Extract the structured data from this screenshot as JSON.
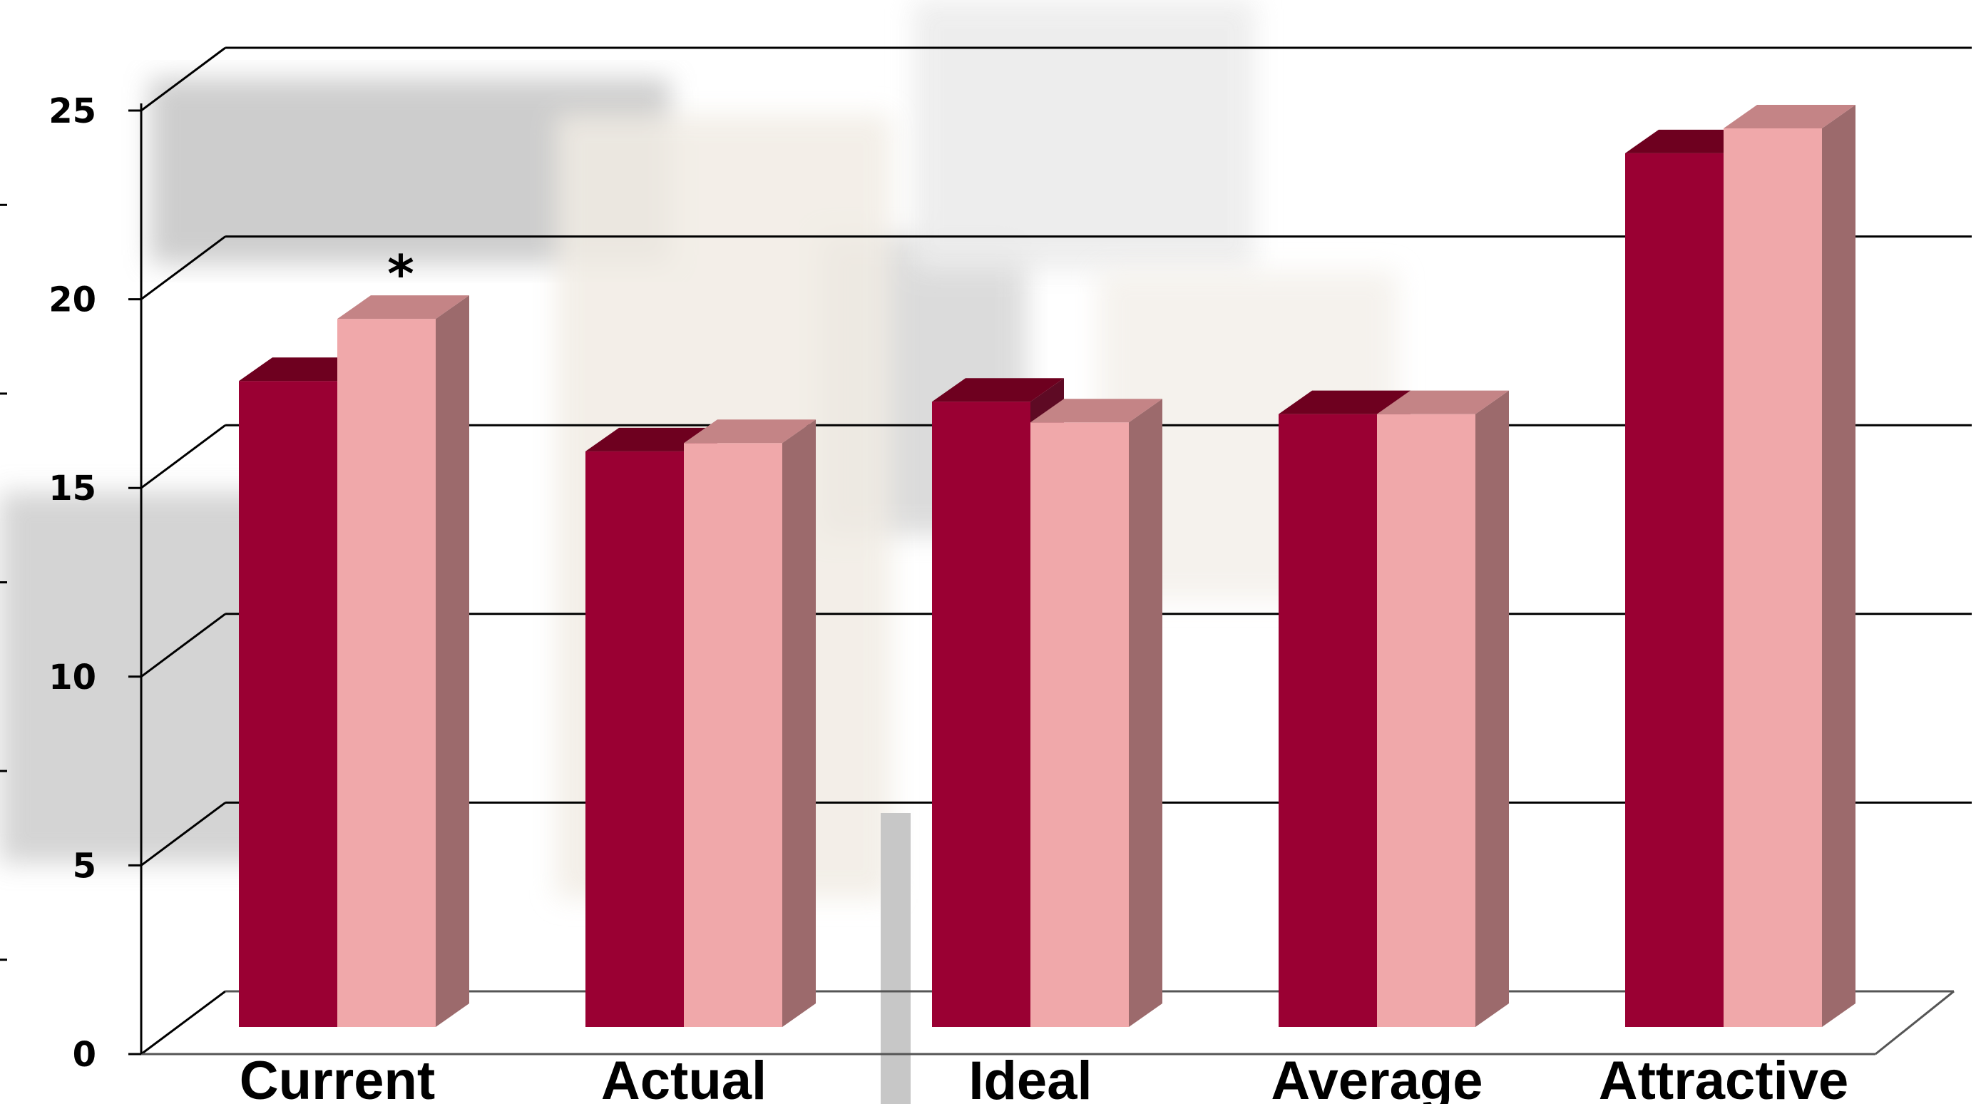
{
  "chart_data": {
    "type": "bar",
    "title": "",
    "xlabel": "",
    "ylabel": "",
    "categories": [
      "Current",
      "Actual",
      "Ideal",
      "Average",
      "Attractive"
    ],
    "series": [
      {
        "values": [
          15.6,
          13.9,
          15.1,
          14.8,
          21.1
        ],
        "color": "#9a0033"
      },
      {
        "values": [
          17.1,
          14.1,
          14.6,
          14.8,
          21.7
        ],
        "color": "#f0a8aa"
      }
    ],
    "ylim": [
      0,
      25
    ],
    "yticks": [
      0,
      5,
      10,
      15,
      20,
      25
    ],
    "grid": true,
    "three_d": true,
    "annotations": [
      {
        "text": "*",
        "category": "Current",
        "series_index": 1
      }
    ],
    "background": "photo of a person in grayscale behind the bars"
  }
}
